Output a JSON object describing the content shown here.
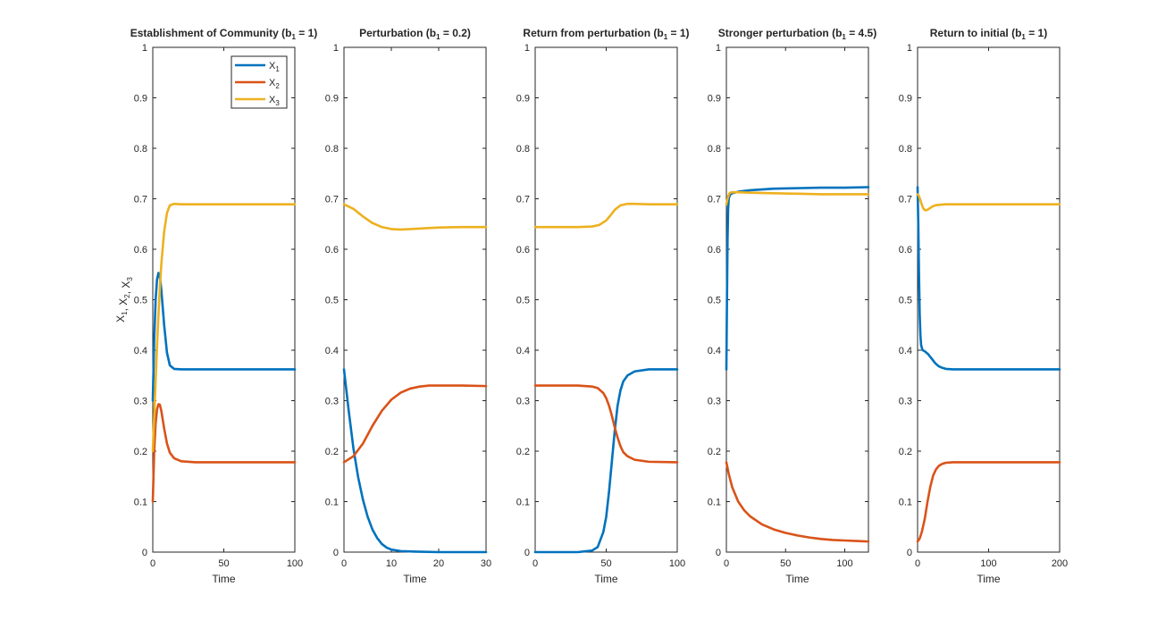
{
  "colors": {
    "x1": "#0072BD",
    "x2": "#D95319",
    "x3": "#EDB120",
    "axis": "#262626"
  },
  "chart_data": [
    {
      "type": "line",
      "title": "Establishment of Community (b",
      "title_sub": "1",
      "title_end": " = 1)",
      "xlabel": "Time",
      "ylabel": "X",
      "ylabel_subs": [
        "1",
        "2",
        "3"
      ],
      "ylabel_sep": ", X",
      "xlim": [
        0,
        100
      ],
      "ylim": [
        0,
        1
      ],
      "xticks": [
        0,
        50,
        100
      ],
      "yticks": [
        0,
        0.1,
        0.2,
        0.3,
        0.4,
        0.5,
        0.6,
        0.7,
        0.8,
        0.9,
        1
      ],
      "ytick_labels": [
        "0",
        "0.1",
        "0.2",
        "0.3",
        "0.4",
        "0.5",
        "0.6",
        "0.7",
        "0.8",
        "0.9",
        "1"
      ],
      "legend": {
        "placement": "top-right",
        "entries": [
          {
            "base": "X",
            "sub": "1",
            "series": "x1"
          },
          {
            "base": "X",
            "sub": "2",
            "series": "x2"
          },
          {
            "base": "X",
            "sub": "3",
            "series": "x3"
          }
        ]
      },
      "series": [
        {
          "key": "x1",
          "x": [
            0,
            1,
            2,
            3,
            4,
            5,
            6,
            8,
            10,
            12,
            15,
            20,
            30,
            50,
            100
          ],
          "y": [
            0.3,
            0.42,
            0.5,
            0.54,
            0.553,
            0.545,
            0.52,
            0.45,
            0.395,
            0.37,
            0.363,
            0.362,
            0.362,
            0.362,
            0.362
          ]
        },
        {
          "key": "x2",
          "x": [
            0,
            1,
            2,
            3,
            4,
            5,
            6,
            8,
            10,
            12,
            15,
            20,
            30,
            50,
            100
          ],
          "y": [
            0.1,
            0.2,
            0.255,
            0.283,
            0.293,
            0.292,
            0.28,
            0.245,
            0.215,
            0.197,
            0.186,
            0.18,
            0.178,
            0.178,
            0.178
          ]
        },
        {
          "key": "x3",
          "x": [
            0,
            1,
            2,
            3,
            4,
            5,
            6,
            8,
            10,
            12,
            15,
            20,
            30,
            50,
            100
          ],
          "y": [
            0.2,
            0.27,
            0.34,
            0.41,
            0.47,
            0.525,
            0.57,
            0.635,
            0.672,
            0.687,
            0.69,
            0.689,
            0.689,
            0.689,
            0.689
          ]
        }
      ]
    },
    {
      "type": "line",
      "title": "Perturbation (b",
      "title_sub": "1",
      "title_end": " = 0.2)",
      "xlabel": "Time",
      "xlim": [
        0,
        30
      ],
      "ylim": [
        0,
        1
      ],
      "xticks": [
        0,
        10,
        20,
        30
      ],
      "yticks": [
        0,
        0.1,
        0.2,
        0.3,
        0.4,
        0.5,
        0.6,
        0.7,
        0.8,
        0.9,
        1
      ],
      "ytick_labels": [
        "0",
        "0.1",
        "0.2",
        "0.3",
        "0.4",
        "0.5",
        "0.6",
        "0.7",
        "0.8",
        "0.9",
        "1"
      ],
      "series": [
        {
          "key": "x1",
          "x": [
            0,
            1,
            2,
            3,
            4,
            5,
            6,
            7,
            8,
            9,
            10,
            12,
            15,
            20,
            30
          ],
          "y": [
            0.362,
            0.28,
            0.205,
            0.148,
            0.104,
            0.07,
            0.045,
            0.028,
            0.016,
            0.009,
            0.005,
            0.002,
            0.001,
            0.0,
            0.0
          ]
        },
        {
          "key": "x2",
          "x": [
            0,
            2,
            4,
            6,
            8,
            10,
            12,
            14,
            16,
            18,
            20,
            25,
            30
          ],
          "y": [
            0.178,
            0.19,
            0.215,
            0.25,
            0.28,
            0.302,
            0.316,
            0.324,
            0.328,
            0.33,
            0.33,
            0.33,
            0.329
          ]
        },
        {
          "key": "x3",
          "x": [
            0,
            2,
            4,
            6,
            8,
            10,
            12,
            14,
            16,
            20,
            25,
            30
          ],
          "y": [
            0.689,
            0.68,
            0.665,
            0.652,
            0.644,
            0.64,
            0.639,
            0.64,
            0.641,
            0.643,
            0.644,
            0.644
          ]
        }
      ]
    },
    {
      "type": "line",
      "title": "Return from perturbation (b",
      "title_sub": "1",
      "title_end": " = 1)",
      "xlabel": "Time",
      "xlim": [
        0,
        100
      ],
      "ylim": [
        0,
        1
      ],
      "xticks": [
        0,
        50,
        100
      ],
      "yticks": [
        0,
        0.1,
        0.2,
        0.3,
        0.4,
        0.5,
        0.6,
        0.7,
        0.8,
        0.9,
        1
      ],
      "ytick_labels": [
        "0",
        "0.1",
        "0.2",
        "0.3",
        "0.4",
        "0.5",
        "0.6",
        "0.7",
        "0.8",
        "0.9",
        "1"
      ],
      "series": [
        {
          "key": "x1",
          "x": [
            0,
            30,
            40,
            44,
            48,
            50,
            52,
            54,
            56,
            58,
            60,
            62,
            65,
            70,
            80,
            100
          ],
          "y": [
            0.0,
            0.0,
            0.003,
            0.01,
            0.04,
            0.07,
            0.12,
            0.18,
            0.24,
            0.29,
            0.32,
            0.338,
            0.35,
            0.358,
            0.362,
            0.362
          ]
        },
        {
          "key": "x2",
          "x": [
            0,
            30,
            40,
            44,
            48,
            50,
            52,
            54,
            56,
            58,
            60,
            62,
            65,
            70,
            80,
            100
          ],
          "y": [
            0.33,
            0.33,
            0.328,
            0.325,
            0.315,
            0.305,
            0.29,
            0.27,
            0.247,
            0.227,
            0.21,
            0.198,
            0.19,
            0.183,
            0.179,
            0.178
          ]
        },
        {
          "key": "x3",
          "x": [
            0,
            30,
            40,
            45,
            50,
            53,
            56,
            60,
            65,
            70,
            80,
            100
          ],
          "y": [
            0.644,
            0.644,
            0.645,
            0.648,
            0.657,
            0.667,
            0.678,
            0.687,
            0.69,
            0.69,
            0.689,
            0.689
          ]
        }
      ]
    },
    {
      "type": "line",
      "title": "Stronger perturbation (b",
      "title_sub": "1",
      "title_end": " = 4.5)",
      "xlabel": "Time",
      "xlim": [
        0,
        120
      ],
      "ylim": [
        0,
        1
      ],
      "xticks": [
        0,
        50,
        100
      ],
      "yticks": [
        0,
        0.1,
        0.2,
        0.3,
        0.4,
        0.5,
        0.6,
        0.7,
        0.8,
        0.9,
        1
      ],
      "ytick_labels": [
        "0",
        "0.1",
        "0.2",
        "0.3",
        "0.4",
        "0.5",
        "0.6",
        "0.7",
        "0.8",
        "0.9",
        "1"
      ],
      "series": [
        {
          "key": "x1",
          "x": [
            0,
            0.5,
            1,
            1.5,
            2,
            3,
            5,
            10,
            20,
            40,
            60,
            80,
            100,
            120
          ],
          "y": [
            0.362,
            0.5,
            0.62,
            0.68,
            0.7,
            0.708,
            0.711,
            0.714,
            0.717,
            0.72,
            0.721,
            0.722,
            0.722,
            0.723
          ]
        },
        {
          "key": "x2",
          "x": [
            0,
            2,
            5,
            10,
            15,
            20,
            30,
            40,
            50,
            60,
            70,
            80,
            90,
            100,
            110,
            120
          ],
          "y": [
            0.178,
            0.155,
            0.128,
            0.1,
            0.083,
            0.071,
            0.055,
            0.045,
            0.038,
            0.033,
            0.029,
            0.026,
            0.024,
            0.023,
            0.022,
            0.021
          ]
        },
        {
          "key": "x3",
          "x": [
            0,
            1,
            2,
            3,
            5,
            10,
            20,
            40,
            60,
            80,
            100,
            120
          ],
          "y": [
            0.689,
            0.7,
            0.708,
            0.712,
            0.713,
            0.713,
            0.712,
            0.711,
            0.71,
            0.709,
            0.709,
            0.709
          ]
        }
      ]
    },
    {
      "type": "line",
      "title": "Return to initial (b",
      "title_sub": "1",
      "title_end": " = 1)",
      "xlabel": "Time",
      "xlim": [
        0,
        200
      ],
      "ylim": [
        0,
        1
      ],
      "xticks": [
        0,
        100,
        200
      ],
      "yticks": [
        0,
        0.1,
        0.2,
        0.3,
        0.4,
        0.5,
        0.6,
        0.7,
        0.8,
        0.9,
        1
      ],
      "ytick_labels": [
        "0",
        "0.1",
        "0.2",
        "0.3",
        "0.4",
        "0.5",
        "0.6",
        "0.7",
        "0.8",
        "0.9",
        "1"
      ],
      "series": [
        {
          "key": "x1",
          "x": [
            0,
            1,
            2,
            3,
            4,
            5,
            7,
            10,
            15,
            20,
            25,
            30,
            35,
            40,
            50,
            70,
            200
          ],
          "y": [
            0.723,
            0.65,
            0.55,
            0.47,
            0.43,
            0.41,
            0.4,
            0.398,
            0.392,
            0.383,
            0.374,
            0.368,
            0.365,
            0.363,
            0.362,
            0.362,
            0.362
          ]
        },
        {
          "key": "x2",
          "x": [
            0,
            3,
            6,
            10,
            14,
            18,
            22,
            26,
            30,
            35,
            40,
            50,
            60,
            80,
            200
          ],
          "y": [
            0.021,
            0.027,
            0.04,
            0.065,
            0.1,
            0.13,
            0.152,
            0.164,
            0.171,
            0.175,
            0.177,
            0.178,
            0.178,
            0.178,
            0.178
          ]
        },
        {
          "key": "x3",
          "x": [
            0,
            2,
            4,
            6,
            8,
            10,
            12,
            15,
            20,
            25,
            30,
            40,
            60,
            200
          ],
          "y": [
            0.709,
            0.705,
            0.697,
            0.688,
            0.681,
            0.678,
            0.677,
            0.679,
            0.684,
            0.687,
            0.688,
            0.689,
            0.689,
            0.689
          ]
        }
      ]
    }
  ]
}
